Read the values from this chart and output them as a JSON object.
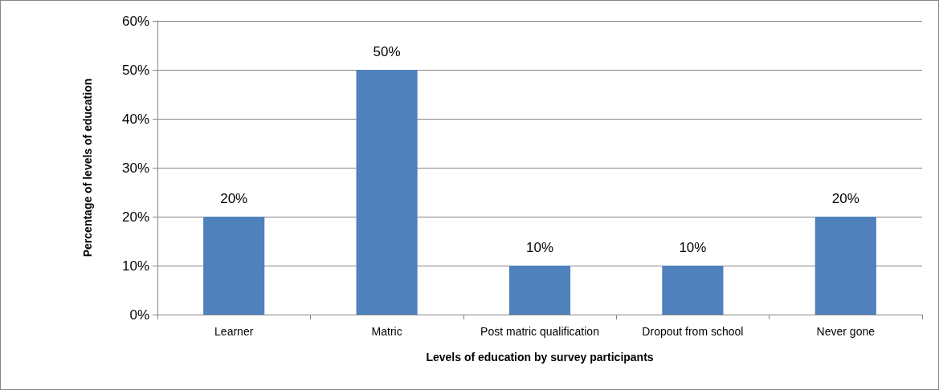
{
  "chart_data": {
    "type": "bar",
    "xlabel": "Levels of education by survey participants",
    "ylabel": "Percentage of levels of education",
    "categories": [
      "Learner",
      "Matric",
      "Post matric qualification",
      "Dropout from school",
      "Never gone"
    ],
    "values": [
      20,
      50,
      10,
      10,
      20
    ],
    "value_labels": [
      "20%",
      "50%",
      "10%",
      "10%",
      "20%"
    ],
    "color": "#4f81bd",
    "ylim": [
      0,
      60
    ],
    "yticks": [
      {
        "value": 0,
        "label": "0%"
      },
      {
        "value": 10,
        "label": "10%"
      },
      {
        "value": 20,
        "label": "20%"
      },
      {
        "value": 30,
        "label": "30%"
      },
      {
        "value": 40,
        "label": "40%"
      },
      {
        "value": 50,
        "label": "50%"
      },
      {
        "value": 60,
        "label": "60%"
      }
    ],
    "grid": "y"
  }
}
